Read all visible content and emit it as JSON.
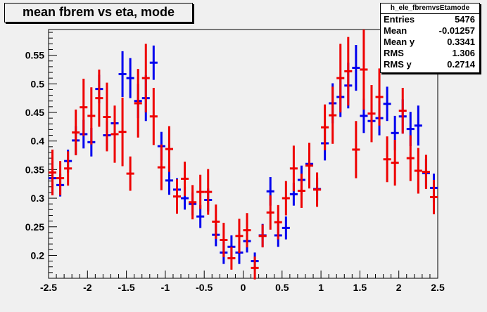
{
  "title": "mean fbrem vs eta, mode",
  "stats": {
    "name": "h_ele_fbremvsEtamode",
    "rows": [
      {
        "label": "Entries",
        "value": "5476"
      },
      {
        "label": "Mean",
        "value": "-0.01257"
      },
      {
        "label": "Mean y",
        "value": "0.3341"
      },
      {
        "label": "RMS",
        "value": "1.306"
      },
      {
        "label": "RMS y",
        "value": "0.2714"
      }
    ]
  },
  "colors": {
    "background": "#f0f0f0",
    "blue_series": "#0000ee",
    "red_series": "#ee0000"
  },
  "chart_data": {
    "type": "scatter",
    "title": "mean fbrem vs eta, mode",
    "xlabel": "",
    "ylabel": "",
    "xlim": [
      -2.5,
      2.5
    ],
    "ylim": [
      0.16,
      0.595
    ],
    "grid": false,
    "xticks": [
      "-2.5",
      "-2",
      "-1.5",
      "-1",
      "-0.5",
      "0",
      "0.5",
      "1",
      "1.5",
      "2",
      "2.5"
    ],
    "yticks": [
      "0.2",
      "0.25",
      "0.3",
      "0.35",
      "0.4",
      "0.45",
      "0.5",
      "0.55"
    ],
    "x_half_width": 0.05,
    "series": [
      {
        "color": "#0000ee",
        "points": [
          {
            "x": -2.45,
            "y": 0.335,
            "err": 0.03
          },
          {
            "x": -2.35,
            "y": 0.323,
            "err": 0.02
          },
          {
            "x": -2.25,
            "y": 0.365,
            "err": 0.02
          },
          {
            "x": -2.15,
            "y": 0.401,
            "err": 0.025
          },
          {
            "x": -2.05,
            "y": 0.412,
            "err": 0.025
          },
          {
            "x": -1.95,
            "y": 0.398,
            "err": 0.025
          },
          {
            "x": -1.85,
            "y": 0.491,
            "err": 0.025
          },
          {
            "x": -1.75,
            "y": 0.41,
            "err": 0.025
          },
          {
            "x": -1.65,
            "y": 0.431,
            "err": 0.03
          },
          {
            "x": -1.55,
            "y": 0.517,
            "err": 0.04
          },
          {
            "x": -1.45,
            "y": 0.51,
            "err": 0.035
          },
          {
            "x": -1.35,
            "y": 0.47,
            "err": 0.03
          },
          {
            "x": -1.25,
            "y": 0.475,
            "err": 0.04
          },
          {
            "x": -1.15,
            "y": 0.537,
            "err": 0.03
          },
          {
            "x": -1.05,
            "y": 0.391,
            "err": 0.025
          },
          {
            "x": -0.95,
            "y": 0.331,
            "err": 0.025
          },
          {
            "x": -0.85,
            "y": 0.315,
            "err": 0.02
          },
          {
            "x": -0.75,
            "y": 0.3,
            "err": 0.02
          },
          {
            "x": -0.65,
            "y": 0.29,
            "err": 0.02
          },
          {
            "x": -0.55,
            "y": 0.268,
            "err": 0.02
          },
          {
            "x": -0.45,
            "y": 0.297,
            "err": 0.02
          },
          {
            "x": -0.35,
            "y": 0.236,
            "err": 0.02
          },
          {
            "x": -0.25,
            "y": 0.205,
            "err": 0.02
          },
          {
            "x": -0.15,
            "y": 0.215,
            "err": 0.02
          },
          {
            "x": -0.05,
            "y": 0.205,
            "err": 0.02
          },
          {
            "x": 0.05,
            "y": 0.225,
            "err": 0.02
          },
          {
            "x": 0.15,
            "y": 0.19,
            "err": 0.015
          },
          {
            "x": 0.25,
            "y": 0.235,
            "err": 0.02
          },
          {
            "x": 0.35,
            "y": 0.312,
            "err": 0.025
          },
          {
            "x": 0.45,
            "y": 0.235,
            "err": 0.02
          },
          {
            "x": 0.55,
            "y": 0.248,
            "err": 0.02
          },
          {
            "x": 0.65,
            "y": 0.307,
            "err": 0.02
          },
          {
            "x": 0.75,
            "y": 0.332,
            "err": 0.025
          },
          {
            "x": 0.85,
            "y": 0.36,
            "err": 0.02
          },
          {
            "x": 0.95,
            "y": 0.316,
            "err": 0.02
          },
          {
            "x": 1.05,
            "y": 0.396,
            "err": 0.03
          },
          {
            "x": 1.15,
            "y": 0.466,
            "err": 0.035
          },
          {
            "x": 1.25,
            "y": 0.477,
            "err": 0.035
          },
          {
            "x": 1.35,
            "y": 0.497,
            "err": 0.04
          },
          {
            "x": 1.45,
            "y": 0.528,
            "err": 0.04
          },
          {
            "x": 1.55,
            "y": 0.444,
            "err": 0.03
          },
          {
            "x": 1.65,
            "y": 0.435,
            "err": 0.03
          },
          {
            "x": 1.75,
            "y": 0.44,
            "err": 0.03
          },
          {
            "x": 1.85,
            "y": 0.465,
            "err": 0.03
          },
          {
            "x": 1.95,
            "y": 0.414,
            "err": 0.03
          },
          {
            "x": 2.05,
            "y": 0.443,
            "err": 0.03
          },
          {
            "x": 2.15,
            "y": 0.421,
            "err": 0.03
          },
          {
            "x": 2.25,
            "y": 0.427,
            "err": 0.035
          },
          {
            "x": 2.35,
            "y": 0.344,
            "err": 0.025
          },
          {
            "x": 2.45,
            "y": 0.318,
            "err": 0.025
          }
        ]
      },
      {
        "color": "#ee0000",
        "points": [
          {
            "x": -2.45,
            "y": 0.345,
            "err": 0.04
          },
          {
            "x": -2.35,
            "y": 0.335,
            "err": 0.03
          },
          {
            "x": -2.25,
            "y": 0.352,
            "err": 0.03
          },
          {
            "x": -2.15,
            "y": 0.415,
            "err": 0.04
          },
          {
            "x": -2.05,
            "y": 0.459,
            "err": 0.05
          },
          {
            "x": -1.95,
            "y": 0.444,
            "err": 0.05
          },
          {
            "x": -1.85,
            "y": 0.475,
            "err": 0.05
          },
          {
            "x": -1.75,
            "y": 0.442,
            "err": 0.06
          },
          {
            "x": -1.65,
            "y": 0.412,
            "err": 0.05
          },
          {
            "x": -1.55,
            "y": 0.416,
            "err": 0.06
          },
          {
            "x": -1.45,
            "y": 0.343,
            "err": 0.03
          },
          {
            "x": -1.35,
            "y": 0.466,
            "err": 0.06
          },
          {
            "x": -1.25,
            "y": 0.51,
            "err": 0.06
          },
          {
            "x": -1.15,
            "y": 0.443,
            "err": 0.05
          },
          {
            "x": -1.05,
            "y": 0.354,
            "err": 0.04
          },
          {
            "x": -0.95,
            "y": 0.386,
            "err": 0.04
          },
          {
            "x": -0.85,
            "y": 0.303,
            "err": 0.03
          },
          {
            "x": -0.75,
            "y": 0.334,
            "err": 0.03
          },
          {
            "x": -0.65,
            "y": 0.293,
            "err": 0.03
          },
          {
            "x": -0.55,
            "y": 0.311,
            "err": 0.03
          },
          {
            "x": -0.45,
            "y": 0.311,
            "err": 0.04
          },
          {
            "x": -0.35,
            "y": 0.259,
            "err": 0.03
          },
          {
            "x": -0.25,
            "y": 0.227,
            "err": 0.03
          },
          {
            "x": -0.15,
            "y": 0.195,
            "err": 0.02
          },
          {
            "x": -0.05,
            "y": 0.234,
            "err": 0.03
          },
          {
            "x": 0.05,
            "y": 0.244,
            "err": 0.03
          },
          {
            "x": 0.15,
            "y": 0.178,
            "err": 0.02
          },
          {
            "x": 0.25,
            "y": 0.234,
            "err": 0.02
          },
          {
            "x": 0.35,
            "y": 0.275,
            "err": 0.03
          },
          {
            "x": 0.45,
            "y": 0.258,
            "err": 0.03
          },
          {
            "x": 0.55,
            "y": 0.3,
            "err": 0.03
          },
          {
            "x": 0.65,
            "y": 0.352,
            "err": 0.04
          },
          {
            "x": 0.75,
            "y": 0.313,
            "err": 0.03
          },
          {
            "x": 0.85,
            "y": 0.357,
            "err": 0.04
          },
          {
            "x": 0.95,
            "y": 0.315,
            "err": 0.03
          },
          {
            "x": 1.05,
            "y": 0.424,
            "err": 0.04
          },
          {
            "x": 1.15,
            "y": 0.445,
            "err": 0.05
          },
          {
            "x": 1.25,
            "y": 0.51,
            "err": 0.06
          },
          {
            "x": 1.35,
            "y": 0.522,
            "err": 0.06
          },
          {
            "x": 1.45,
            "y": 0.385,
            "err": 0.05
          },
          {
            "x": 1.55,
            "y": 0.525,
            "err": 0.07
          },
          {
            "x": 1.65,
            "y": 0.448,
            "err": 0.05
          },
          {
            "x": 1.75,
            "y": 0.477,
            "err": 0.05
          },
          {
            "x": 1.85,
            "y": 0.368,
            "err": 0.04
          },
          {
            "x": 1.95,
            "y": 0.362,
            "err": 0.04
          },
          {
            "x": 2.05,
            "y": 0.453,
            "err": 0.04
          },
          {
            "x": 2.15,
            "y": 0.37,
            "err": 0.04
          },
          {
            "x": 2.25,
            "y": 0.348,
            "err": 0.04
          },
          {
            "x": 2.35,
            "y": 0.346,
            "err": 0.03
          },
          {
            "x": 2.45,
            "y": 0.302,
            "err": 0.03
          }
        ]
      }
    ]
  }
}
